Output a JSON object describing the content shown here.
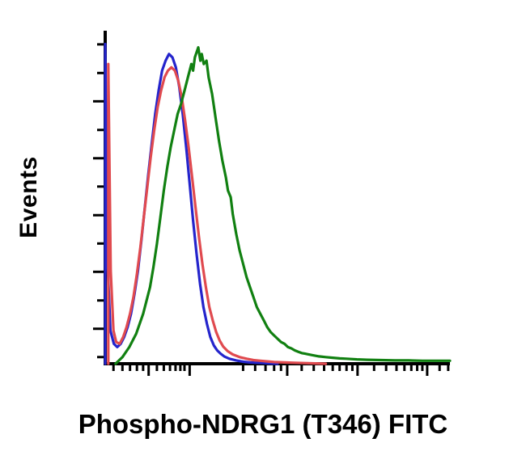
{
  "chart_data": {
    "type": "line",
    "subtype": "flow-cytometry-histogram-overlay",
    "title": "",
    "xlabel": "Phospho-NDRG1 (T346) FITC",
    "ylabel": "Events",
    "background_color": "#ffffff",
    "axis_color": "#000000",
    "grid": false,
    "legend": "none",
    "x_axis_tick_labels": [],
    "y_axis_tick_labels": [],
    "axis_note": "no numeric tick labels shown; x is log-like intensity axis, y is linear event count; curve points are percent of axis span [x 0-100, y 0-100]",
    "series": [
      {
        "name": "blue-control-histogram",
        "color": "#2424cc",
        "points": [
          [
            0,
            0
          ],
          [
            0,
            96
          ],
          [
            0.7,
            30
          ],
          [
            1.5,
            10
          ],
          [
            2.5,
            6
          ],
          [
            3.5,
            5
          ],
          [
            4.5,
            6
          ],
          [
            5.5,
            8
          ],
          [
            6.5,
            11
          ],
          [
            7.5,
            15
          ],
          [
            8.5,
            21
          ],
          [
            9.5,
            28
          ],
          [
            10.5,
            37
          ],
          [
            11.5,
            47
          ],
          [
            12.5,
            57
          ],
          [
            13.5,
            66
          ],
          [
            14.5,
            75
          ],
          [
            15.5,
            82
          ],
          [
            16.5,
            88
          ],
          [
            17.5,
            91
          ],
          [
            18.5,
            93
          ],
          [
            19.5,
            92
          ],
          [
            20.5,
            89
          ],
          [
            21.5,
            83
          ],
          [
            22.5,
            75
          ],
          [
            23.5,
            65
          ],
          [
            24.5,
            54
          ],
          [
            25.5,
            43
          ],
          [
            26.5,
            33
          ],
          [
            27.5,
            24
          ],
          [
            28.5,
            17
          ],
          [
            29.5,
            12
          ],
          [
            30.5,
            8
          ],
          [
            31.5,
            5.5
          ],
          [
            32.5,
            4
          ],
          [
            33.5,
            3
          ],
          [
            34.5,
            2.2
          ],
          [
            36,
            1.5
          ],
          [
            38,
            1
          ],
          [
            40,
            0.6
          ],
          [
            42,
            0.4
          ],
          [
            44,
            0.3
          ],
          [
            46,
            0.2
          ],
          [
            48,
            0.1
          ],
          [
            50,
            0
          ]
        ]
      },
      {
        "name": "red-control-histogram",
        "color": "#e04a4f",
        "points": [
          [
            0.9,
            0
          ],
          [
            0.9,
            90
          ],
          [
            1.6,
            28
          ],
          [
            2.4,
            10
          ],
          [
            3.2,
            6.5
          ],
          [
            4.2,
            6
          ],
          [
            5.2,
            8
          ],
          [
            6.2,
            11
          ],
          [
            7.2,
            15
          ],
          [
            8.2,
            20
          ],
          [
            9.2,
            27
          ],
          [
            10.2,
            35
          ],
          [
            11.2,
            44
          ],
          [
            12.2,
            53
          ],
          [
            13.2,
            62
          ],
          [
            14.2,
            70
          ],
          [
            15.2,
            77
          ],
          [
            16.2,
            82
          ],
          [
            17.2,
            86
          ],
          [
            18.2,
            88
          ],
          [
            19.2,
            89
          ],
          [
            20.2,
            88
          ],
          [
            21.2,
            85
          ],
          [
            22.2,
            80
          ],
          [
            23.2,
            73
          ],
          [
            24.2,
            65
          ],
          [
            25.2,
            56
          ],
          [
            26.2,
            47
          ],
          [
            27.2,
            38
          ],
          [
            28.2,
            30
          ],
          [
            29.2,
            23
          ],
          [
            30.2,
            17
          ],
          [
            31.2,
            13
          ],
          [
            32.2,
            9.5
          ],
          [
            33.2,
            7
          ],
          [
            34.2,
            5.2
          ],
          [
            35.5,
            3.8
          ],
          [
            37,
            2.8
          ],
          [
            39,
            2
          ],
          [
            41,
            1.5
          ],
          [
            43,
            1.1
          ],
          [
            45,
            0.9
          ],
          [
            47,
            0.7
          ],
          [
            49,
            0.5
          ],
          [
            52,
            0.4
          ],
          [
            55,
            0.3
          ],
          [
            58,
            0.2
          ],
          [
            61,
            0.1
          ],
          [
            64,
            0
          ]
        ]
      },
      {
        "name": "green-sample-histogram",
        "color": "#118011",
        "points": [
          [
            3,
            0
          ],
          [
            5,
            2
          ],
          [
            7,
            5
          ],
          [
            9,
            9
          ],
          [
            11,
            15
          ],
          [
            13,
            23
          ],
          [
            14,
            29
          ],
          [
            15,
            36
          ],
          [
            16,
            44
          ],
          [
            17,
            52
          ],
          [
            18,
            59
          ],
          [
            19,
            65
          ],
          [
            20,
            70
          ],
          [
            21,
            75
          ],
          [
            22,
            78
          ],
          [
            23,
            82
          ],
          [
            24,
            86
          ],
          [
            25,
            90
          ],
          [
            25.5,
            88
          ],
          [
            26,
            92
          ],
          [
            27,
            95
          ],
          [
            27.6,
            91
          ],
          [
            28,
            93
          ],
          [
            28.6,
            90
          ],
          [
            29.4,
            91
          ],
          [
            30,
            86
          ],
          [
            31,
            81
          ],
          [
            32,
            74
          ],
          [
            33,
            67
          ],
          [
            34,
            61
          ],
          [
            35,
            56
          ],
          [
            35.6,
            52
          ],
          [
            36.4,
            50
          ],
          [
            37,
            45
          ],
          [
            38,
            39
          ],
          [
            39,
            34
          ],
          [
            40,
            30
          ],
          [
            41,
            26
          ],
          [
            42,
            23
          ],
          [
            43,
            20
          ],
          [
            44,
            17
          ],
          [
            45,
            15
          ],
          [
            46,
            13
          ],
          [
            47,
            11
          ],
          [
            48,
            9.5
          ],
          [
            49,
            8.5
          ],
          [
            50,
            7.5
          ],
          [
            51,
            6.5
          ],
          [
            52,
            6
          ],
          [
            53,
            5
          ],
          [
            54,
            4.6
          ],
          [
            55,
            4
          ],
          [
            56,
            3.6
          ],
          [
            57,
            3.2
          ],
          [
            58,
            3
          ],
          [
            60,
            2.6
          ],
          [
            62,
            2.2
          ],
          [
            64,
            2
          ],
          [
            66,
            1.8
          ],
          [
            68,
            1.6
          ],
          [
            70,
            1.5
          ],
          [
            73,
            1.3
          ],
          [
            76,
            1.2
          ],
          [
            80,
            1.1
          ],
          [
            84,
            1
          ],
          [
            88,
            1
          ],
          [
            92,
            0.9
          ],
          [
            96,
            0.9
          ],
          [
            100,
            0.9
          ]
        ]
      }
    ],
    "x_ticks": [
      {
        "p": 2.4,
        "major": false
      },
      {
        "p": 5,
        "major": false
      },
      {
        "p": 7.2,
        "major": false
      },
      {
        "p": 9.2,
        "major": false
      },
      {
        "p": 11,
        "major": false
      },
      {
        "p": 12.6,
        "major": true
      },
      {
        "p": 15,
        "major": false
      },
      {
        "p": 17,
        "major": false
      },
      {
        "p": 18.8,
        "major": false
      },
      {
        "p": 20.4,
        "major": false
      },
      {
        "p": 21.8,
        "major": false
      },
      {
        "p": 23,
        "major": false
      },
      {
        "p": 24.5,
        "major": true
      },
      {
        "p": 40,
        "major": false
      },
      {
        "p": 43.5,
        "major": false
      },
      {
        "p": 46.5,
        "major": false
      },
      {
        "p": 49,
        "major": false
      },
      {
        "p": 51,
        "major": false
      },
      {
        "p": 52.8,
        "major": true
      },
      {
        "p": 57,
        "major": false
      },
      {
        "p": 60.5,
        "major": false
      },
      {
        "p": 63.5,
        "major": false
      },
      {
        "p": 66,
        "major": false
      },
      {
        "p": 68,
        "major": false
      },
      {
        "p": 70,
        "major": false
      },
      {
        "p": 71.7,
        "major": false
      },
      {
        "p": 73.2,
        "major": true
      },
      {
        "p": 78,
        "major": false
      },
      {
        "p": 81.5,
        "major": false
      },
      {
        "p": 84.5,
        "major": false
      },
      {
        "p": 86.8,
        "major": false
      },
      {
        "p": 88.8,
        "major": false
      },
      {
        "p": 90.5,
        "major": false
      },
      {
        "p": 92,
        "major": false
      },
      {
        "p": 93.4,
        "major": true
      },
      {
        "p": 97,
        "major": false
      },
      {
        "p": 99.5,
        "major": false
      }
    ],
    "y_ticks": [
      {
        "p": 95.9,
        "major": false
      },
      {
        "p": 87.3,
        "major": false
      },
      {
        "p": 78.8,
        "major": true
      },
      {
        "p": 70.2,
        "major": false
      },
      {
        "p": 61.7,
        "major": true
      },
      {
        "p": 53.2,
        "major": false
      },
      {
        "p": 44.6,
        "major": true
      },
      {
        "p": 36.1,
        "major": false
      },
      {
        "p": 27.6,
        "major": true
      },
      {
        "p": 19.0,
        "major": false
      },
      {
        "p": 10.5,
        "major": true
      },
      {
        "p": 2.0,
        "major": false
      }
    ]
  }
}
